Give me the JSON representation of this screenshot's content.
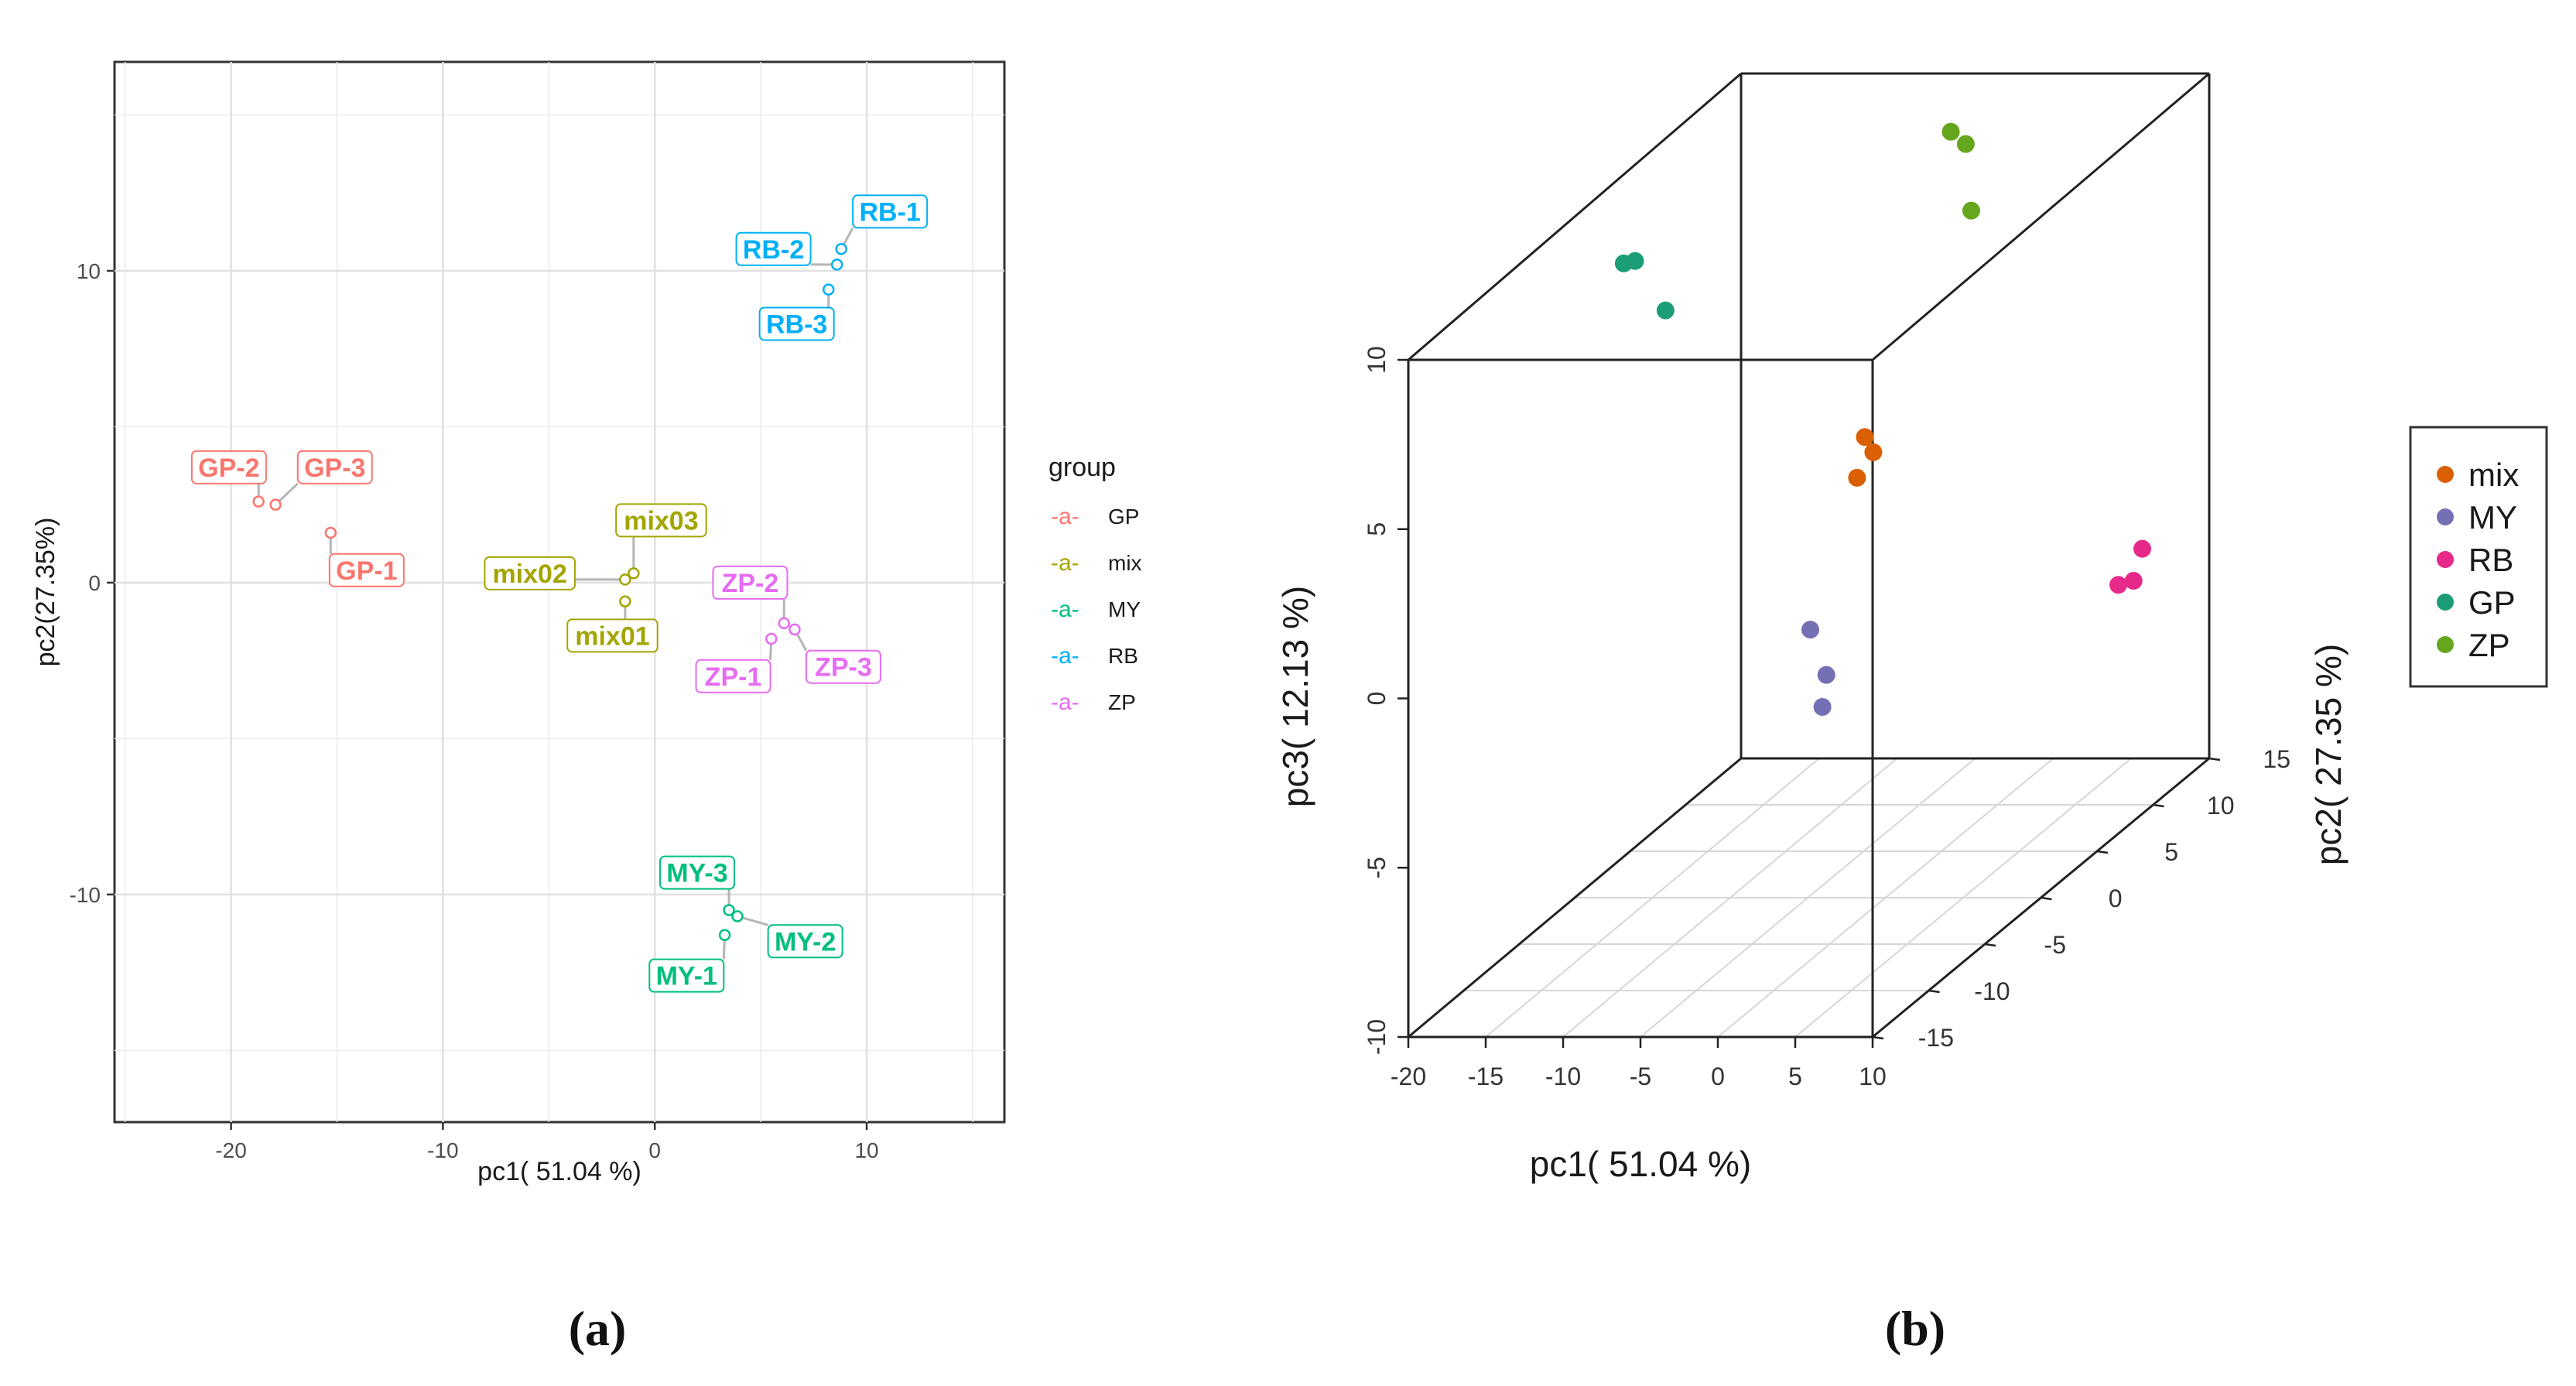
{
  "chart_data": [
    {
      "type": "scatter",
      "panel_label": "(a)",
      "xlabel": "pc1( 51.04 %)",
      "ylabel": "pc2(27.35%)",
      "xlim": [
        -25.5,
        16.5
      ],
      "ylim": [
        -17.3,
        16.7
      ],
      "xticks": [
        -20,
        -10,
        0,
        10
      ],
      "yticks": [
        -10,
        0,
        10
      ],
      "xtick_labels": [
        "-20",
        "-10",
        "0",
        "10"
      ],
      "ytick_labels": [
        "-10",
        "0",
        "10"
      ],
      "grid": true,
      "legend": {
        "title": "group",
        "position": "right",
        "glyph": "-a-",
        "entries": [
          "GP",
          "mix",
          "MY",
          "RB",
          "ZP"
        ]
      },
      "colors": {
        "GP": "#F8766D",
        "mix": "#A3A500",
        "MY": "#00BF7D",
        "RB": "#00B0F6",
        "ZP": "#E76BF3"
      },
      "points": [
        {
          "label": "GP-1",
          "group": "GP",
          "x": -15.3,
          "y": 1.6,
          "lx": -13.6,
          "ly": 0.4
        },
        {
          "label": "GP-2",
          "group": "GP",
          "x": -18.7,
          "y": 2.6,
          "lx": -20.1,
          "ly": 3.7
        },
        {
          "label": "GP-3",
          "group": "GP",
          "x": -17.9,
          "y": 2.5,
          "lx": -15.1,
          "ly": 3.7
        },
        {
          "label": "mix01",
          "group": "mix",
          "x": -1.4,
          "y": -0.6,
          "lx": -2.0,
          "ly": -1.7
        },
        {
          "label": "mix02",
          "group": "mix",
          "x": -1.4,
          "y": 0.1,
          "lx": -5.9,
          "ly": 0.3
        },
        {
          "label": "mix03",
          "group": "mix",
          "x": -1.0,
          "y": 0.3,
          "lx": 0.3,
          "ly": 2.0
        },
        {
          "label": "MY-1",
          "group": "MY",
          "x": 3.3,
          "y": -11.3,
          "lx": 1.5,
          "ly": -12.6
        },
        {
          "label": "MY-2",
          "group": "MY",
          "x": 3.9,
          "y": -10.7,
          "lx": 7.1,
          "ly": -11.5
        },
        {
          "label": "MY-3",
          "group": "MY",
          "x": 3.5,
          "y": -10.5,
          "lx": 2.0,
          "ly": -9.3
        },
        {
          "label": "RB-1",
          "group": "RB",
          "x": 8.8,
          "y": 10.7,
          "lx": 11.1,
          "ly": 11.9
        },
        {
          "label": "RB-2",
          "group": "RB",
          "x": 8.6,
          "y": 10.2,
          "lx": 5.6,
          "ly": 10.7
        },
        {
          "label": "RB-3",
          "group": "RB",
          "x": 8.2,
          "y": 9.4,
          "lx": 6.7,
          "ly": 8.3
        },
        {
          "label": "ZP-1",
          "group": "ZP",
          "x": 5.5,
          "y": -1.8,
          "lx": 3.7,
          "ly": -3.0
        },
        {
          "label": "ZP-2",
          "group": "ZP",
          "x": 6.1,
          "y": -1.3,
          "lx": 4.5,
          "ly": 0.0
        },
        {
          "label": "ZP-3",
          "group": "ZP",
          "x": 6.6,
          "y": -1.5,
          "lx": 8.9,
          "ly": -2.7
        }
      ]
    },
    {
      "type": "scatter",
      "panel_label": "(b)",
      "xlabel": "pc1( 51.04 %)",
      "ylabel": "pc3( 12.13 %)",
      "zlabel": "pc2( 27.35 %)",
      "xlim": [
        -20,
        10
      ],
      "ylim": [
        -15,
        15
      ],
      "zlim": [
        -10,
        10
      ],
      "xticks": [
        -20,
        -15,
        -10,
        -5,
        0,
        5,
        10
      ],
      "depth_ticks": [
        -15,
        -10,
        -5,
        0,
        5,
        10,
        15
      ],
      "vertical_ticks": [
        -10,
        -5,
        0,
        5,
        10
      ],
      "xtick_labels": [
        "-20",
        "-15",
        "-10",
        "-5",
        "0",
        "5",
        "10"
      ],
      "depth_tick_labels": [
        "-15",
        "-10",
        "-5",
        "0",
        "5",
        "10",
        "15"
      ],
      "vertical_tick_labels": [
        "-10",
        "-5",
        "0",
        "5",
        "10"
      ],
      "legend": {
        "position": "right",
        "entries": [
          "mix",
          "MY",
          "RB",
          "GP",
          "ZP"
        ]
      },
      "colors": {
        "mix": "#D95F02",
        "MY": "#7570B3",
        "RB": "#E7298A",
        "GP": "#1B9E77",
        "ZP": "#66A61E"
      },
      "points": [
        {
          "group": "mix",
          "pc1": -1.4,
          "pc2": 0.1,
          "pc3": 3.5
        },
        {
          "group": "mix",
          "pc1": -1.0,
          "pc2": 0.3,
          "pc3": 3.0
        },
        {
          "group": "mix",
          "pc1": -1.4,
          "pc2": -0.6,
          "pc3": 2.5
        },
        {
          "group": "MY",
          "pc1": 3.3,
          "pc2": -11.3,
          "pc3": 1.0
        },
        {
          "group": "MY",
          "pc1": 3.9,
          "pc2": -10.7,
          "pc3": -0.5
        },
        {
          "group": "MY",
          "pc1": 3.5,
          "pc2": -10.5,
          "pc3": -1.5
        },
        {
          "group": "RB",
          "pc1": 8.8,
          "pc2": 10.7,
          "pc3": -2.7
        },
        {
          "group": "RB",
          "pc1": 8.6,
          "pc2": 10.2,
          "pc3": -3.5
        },
        {
          "group": "RB",
          "pc1": 8.2,
          "pc2": 9.4,
          "pc3": -3.4
        },
        {
          "group": "GP",
          "pc1": -18.7,
          "pc2": 2.6,
          "pc3": 7.9
        },
        {
          "group": "GP",
          "pc1": -17.9,
          "pc2": 2.5,
          "pc3": 8.0
        },
        {
          "group": "GP",
          "pc1": -15.3,
          "pc2": 1.6,
          "pc3": 6.8
        },
        {
          "group": "ZP",
          "pc1": 5.5,
          "pc2": -1.8,
          "pc3": 13.0
        },
        {
          "group": "ZP",
          "pc1": 6.1,
          "pc2": -1.3,
          "pc3": 12.5
        },
        {
          "group": "ZP",
          "pc1": 6.6,
          "pc2": -1.5,
          "pc3": 10.6
        }
      ]
    }
  ]
}
